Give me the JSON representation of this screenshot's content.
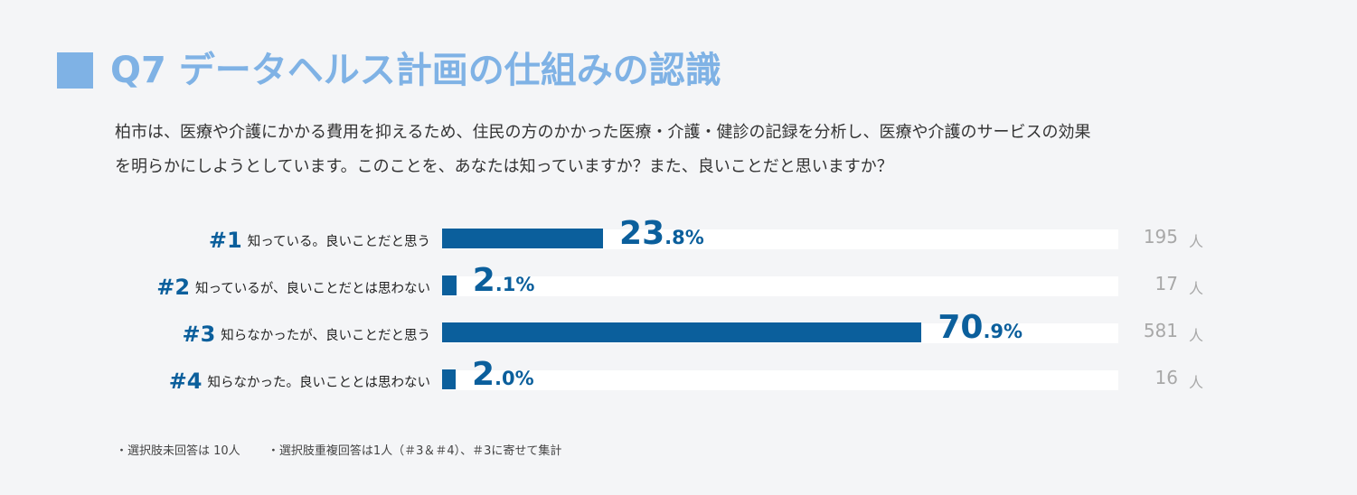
{
  "title": "Q7 データヘルス計画の仕組みの認識",
  "question": {
    "line1": "柏市は、医療や介護にかかる費用を抑えるため、住民の方のかかった医療・介護・健診の記録を分析し、医療や介護のサービスの効果",
    "line2": "を明らかにしようとしています。このことを、あなたは知っていますか？また、良いことだと思いますか？"
  },
  "colors": {
    "title": "#7fb2e5",
    "title_square": "#7fb2e5",
    "bar": "#0b5f9c",
    "rank": "#0b5f9c",
    "track": "#ffffff"
  },
  "chart_data": {
    "type": "bar",
    "orientation": "horizontal",
    "xlim": [
      0,
      100
    ],
    "unit": "人",
    "bars": [
      {
        "rank": "#1",
        "label": "知っている。良いことだと思う",
        "percent": 23.8,
        "pct_int": "23",
        "pct_dec": ".8%",
        "count": "195"
      },
      {
        "rank": "#2",
        "label": "知っているが、良いことだとは思わない",
        "percent": 2.1,
        "pct_int": "2",
        "pct_dec": ".1%",
        "count": "17"
      },
      {
        "rank": "#3",
        "label": "知らなかったが、良いことだと思う",
        "percent": 70.9,
        "pct_int": "70",
        "pct_dec": ".9%",
        "count": "581"
      },
      {
        "rank": "#4",
        "label": "知らなかった。良いこととは思わない",
        "percent": 2.0,
        "pct_int": "2",
        "pct_dec": ".0%",
        "count": "16"
      }
    ]
  },
  "footnotes": {
    "note1": "・選択肢未回答は 10人",
    "note2": "・選択肢重複回答は1人（＃3＆＃4）、＃3に寄せて集計"
  }
}
